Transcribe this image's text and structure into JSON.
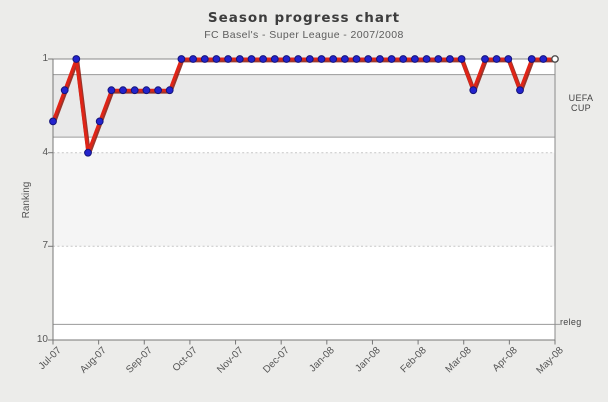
{
  "title": "Season progress chart",
  "subtitle": "FC Basel's - Super League - 2007/2008",
  "chart_data": {
    "type": "line",
    "title": "Season progress chart",
    "subtitle": "FC Basel's - Super League - 2007/2008",
    "xlabel": "",
    "ylabel": "Ranking",
    "x_tick_labels": [
      "Jul-07",
      "Aug-07",
      "Sep-07",
      "Oct-07",
      "Nov-07",
      "Dec-07",
      "Jan-08",
      "Jan-08",
      "Feb-08",
      "Mar-08",
      "Apr-08",
      "May-08"
    ],
    "y_tick_labels": [
      "1",
      "4",
      "7",
      "10"
    ],
    "ylim": [
      1,
      10
    ],
    "y_axis_inverted": true,
    "grid": "dotted horizontal lines at ranks 4 and 7",
    "legend": "none",
    "series": [
      {
        "name": "ranking",
        "values": [
          3,
          2,
          1,
          4,
          3,
          2,
          2,
          2,
          2,
          2,
          2,
          1,
          1,
          1,
          1,
          1,
          1,
          1,
          1,
          1,
          1,
          1,
          1,
          1,
          1,
          1,
          1,
          1,
          1,
          1,
          1,
          1,
          1,
          1,
          1,
          1,
          2,
          1,
          1,
          1,
          2,
          1,
          1,
          1
        ]
      }
    ],
    "annotations": [
      {
        "label": "UEFA CUP",
        "type": "zone",
        "rank_from": 1.5,
        "rank_to": 3.5
      },
      {
        "label": "releg",
        "type": "line",
        "rank": 9.5
      }
    ],
    "last_point_marker": "open-circle",
    "colors": {
      "line": "#e02417",
      "marker": "#2323cd",
      "uefa_zone_fill": "#e9e9e9",
      "stripe_fill": "#f5f5f5",
      "background": "#ececea"
    }
  },
  "right_labels": {
    "uefa_line1": "UEFA",
    "uefa_line2": "CUP",
    "releg": "releg"
  }
}
